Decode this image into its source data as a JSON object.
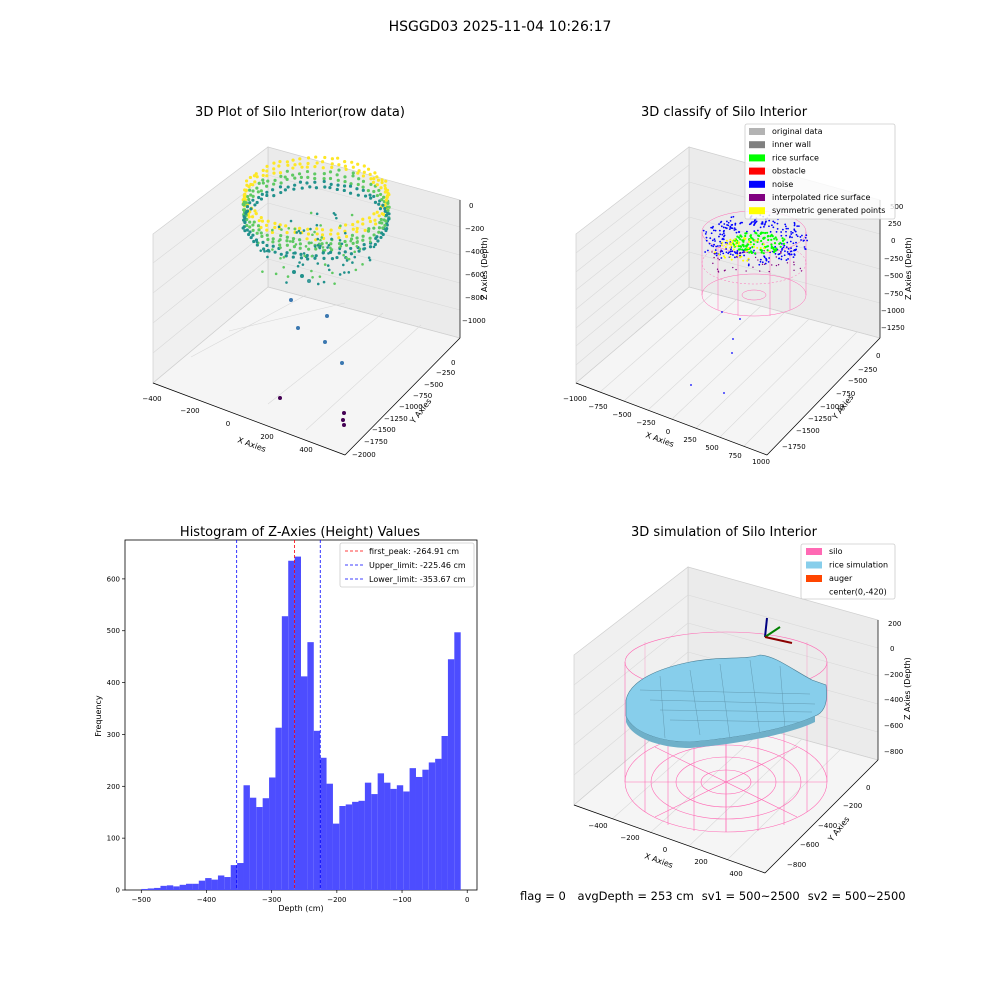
{
  "figure_title": "HSGGD03 2025-11-04 10:26:17",
  "footer": {
    "flag": "flag = 0",
    "avg_depth": "avgDepth = 253 cm",
    "sv1": "sv1 = 500~2500",
    "sv2": "sv2 = 500~2500"
  },
  "colors": {
    "original_data": "#b3b3b3",
    "inner_wall": "#808080",
    "rice_surface": "#00ff00",
    "obstacle": "#ff0000",
    "noise": "#0000ff",
    "interpolated_rice_surface": "#800080",
    "symmetric_generated_points": "#ffff00",
    "silo": "#ff69b4",
    "rice_simulation": "#87ceeb",
    "auger": "#ff4500",
    "histogram_bar": "#4d4dff"
  },
  "chart_data": [
    {
      "type": "scatter",
      "subtype": "3d",
      "title": "3D Plot of Silo Interior(row data)",
      "xlabel": "X Axies",
      "ylabel": "Y Axies",
      "zlabel": "Z Axies (Depth)",
      "x_ticks": [
        "−400",
        "−200",
        "0",
        "200",
        "400"
      ],
      "y_ticks": [
        "0",
        "−250",
        "−500",
        "−750",
        "−1000",
        "−1250",
        "−1500",
        "−1750",
        "−2000"
      ],
      "z_ticks": [
        "0",
        "−200",
        "−400",
        "−600",
        "−800",
        "−1000"
      ],
      "colormap": "viridis",
      "grid": true
    },
    {
      "type": "scatter",
      "subtype": "3d",
      "title": "3D classify of Silo Interior",
      "xlabel": "X Axies",
      "ylabel": "Y Axies",
      "zlabel": "Z Axies (Depth)",
      "x_ticks": [
        "−1000",
        "−750",
        "−500",
        "−250",
        "0",
        "250",
        "500",
        "750",
        "1000"
      ],
      "y_ticks": [
        "0",
        "−250",
        "−500",
        "−750",
        "−1000",
        "−1250",
        "−1500",
        "−1750"
      ],
      "z_ticks": [
        "500",
        "250",
        "0",
        "−250",
        "−500",
        "−750",
        "−1000",
        "−1250"
      ],
      "legend": [
        {
          "label": "original data",
          "color": "#b3b3b3"
        },
        {
          "label": "inner wall",
          "color": "#808080"
        },
        {
          "label": "rice surface",
          "color": "#00ff00"
        },
        {
          "label": "obstacle",
          "color": "#ff0000"
        },
        {
          "label": "noise",
          "color": "#0000ff"
        },
        {
          "label": "interpolated rice surface",
          "color": "#800080"
        },
        {
          "label": "symmetric generated points",
          "color": "#ffff00"
        }
      ],
      "legend_position": "top-right",
      "grid": true
    },
    {
      "type": "bar",
      "subtype": "histogram",
      "title": "Histogram of Z-Axies (Height) Values",
      "xlabel": "Depth (cm)",
      "ylabel": "Frequency",
      "xlim": [
        -525,
        15
      ],
      "ylim": [
        0,
        675
      ],
      "x_ticks": [
        -500,
        -400,
        -300,
        -200,
        -100,
        0
      ],
      "x_tick_labels": [
        "−500",
        "−400",
        "−300",
        "−200",
        "−100",
        "0"
      ],
      "y_ticks": [
        0,
        100,
        200,
        300,
        400,
        500,
        600
      ],
      "bin_start": -500,
      "bin_width": 9.8,
      "values": [
        2,
        3,
        4,
        8,
        9,
        7,
        10,
        12,
        12,
        18,
        23,
        20,
        28,
        25,
        48,
        52,
        202,
        178,
        160,
        177,
        217,
        313,
        528,
        635,
        643,
        412,
        478,
        307,
        255,
        205,
        128,
        162,
        165,
        170,
        172,
        207,
        185,
        225,
        207,
        195,
        202,
        190,
        235,
        218,
        232,
        246,
        253,
        297,
        445,
        497
      ],
      "vlines": [
        {
          "label": "first_peak: -264.91 cm",
          "x": -264.91,
          "color": "#ff0000"
        },
        {
          "label": "Upper_limit: -225.46 cm",
          "x": -225.46,
          "color": "#0000ff"
        },
        {
          "label": "Lower_limit: -353.67 cm",
          "x": -353.67,
          "color": "#0000ff"
        }
      ],
      "legend_position": "top-right"
    },
    {
      "type": "area",
      "subtype": "3d-surface",
      "title": "3D simulation of Silo Interior",
      "xlabel": "X Axies",
      "ylabel": "Y Axies",
      "zlabel": "Z Axies (Depth)",
      "x_ticks": [
        "−400",
        "−200",
        "0",
        "200",
        "400"
      ],
      "y_ticks": [
        "0",
        "−200",
        "−400",
        "−600",
        "−800"
      ],
      "z_ticks": [
        "200",
        "0",
        "−200",
        "−400",
        "−600",
        "−800"
      ],
      "legend": [
        {
          "label": "silo",
          "color": "#ff69b4"
        },
        {
          "label": "rice simulation",
          "color": "#87ceeb"
        },
        {
          "label": "auger",
          "color": "#ff4500"
        },
        {
          "label": "center(0,-420)",
          "color": ""
        }
      ],
      "legend_position": "top-right",
      "grid": true
    }
  ]
}
